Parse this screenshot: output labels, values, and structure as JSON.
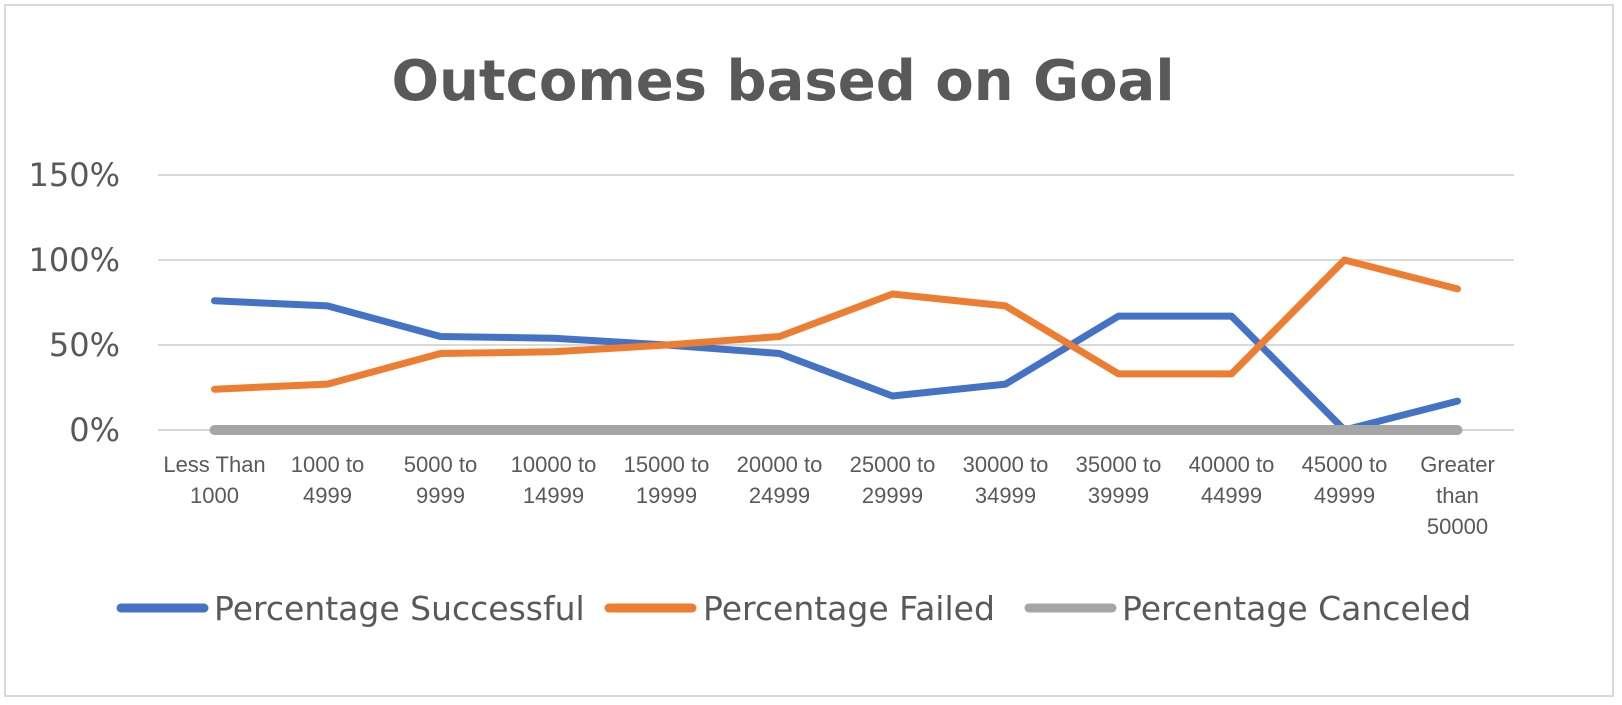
{
  "chart_data": {
    "type": "line",
    "title": "Outcomes based on Goal",
    "xlabel": "",
    "ylabel": "",
    "categories": [
      [
        "Less Than",
        "1000"
      ],
      [
        "1000 to",
        "4999"
      ],
      [
        "5000 to",
        "9999"
      ],
      [
        "10000 to",
        "14999"
      ],
      [
        "15000 to",
        "19999"
      ],
      [
        "20000 to",
        "24999"
      ],
      [
        "25000 to",
        "29999"
      ],
      [
        "30000 to",
        "34999"
      ],
      [
        "35000 to",
        "39999"
      ],
      [
        "40000 to",
        "44999"
      ],
      [
        "45000 to",
        "49999"
      ],
      [
        "Greater",
        "than",
        "50000"
      ]
    ],
    "y_ticks": [
      "0%",
      "50%",
      "100%",
      "150%"
    ],
    "y_tick_values": [
      0,
      50,
      100,
      150
    ],
    "ylim": [
      0,
      150
    ],
    "grid": true,
    "legend_position": "bottom",
    "series": [
      {
        "name": "Percentage Successful",
        "color": "#4472C4",
        "values": [
          76,
          73,
          55,
          54,
          50,
          45,
          20,
          27,
          67,
          67,
          0,
          17
        ]
      },
      {
        "name": "Percentage Failed",
        "color": "#ED7D31",
        "values": [
          24,
          27,
          45,
          46,
          50,
          55,
          80,
          73,
          33,
          33,
          100,
          83
        ]
      },
      {
        "name": "Percentage Canceled",
        "color": "#A5A5A5",
        "values": [
          0,
          0,
          0,
          0,
          0,
          0,
          0,
          0,
          0,
          0,
          0,
          0
        ]
      }
    ]
  }
}
